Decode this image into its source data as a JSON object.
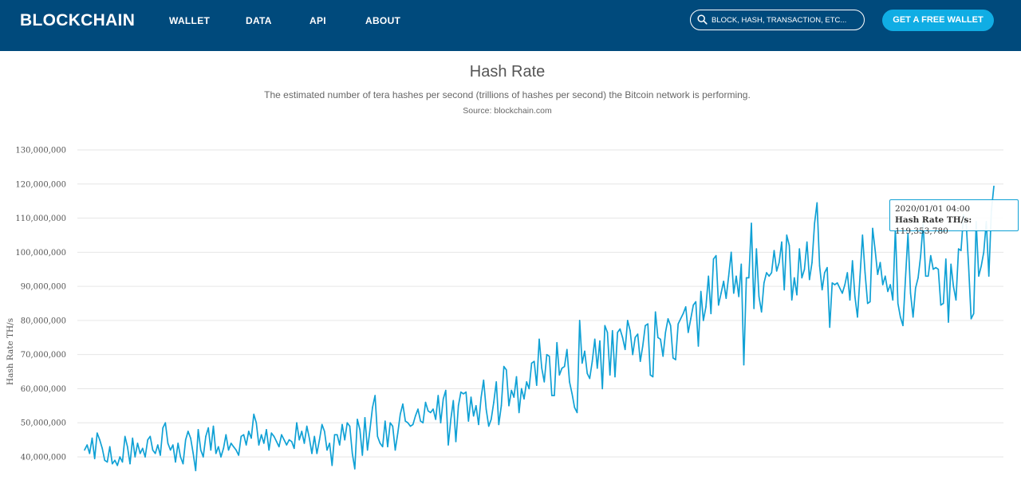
{
  "nav": {
    "brand": "BLOCKCHAIN",
    "items": [
      {
        "label": "WALLET"
      },
      {
        "label": "DATA"
      },
      {
        "label": "API"
      },
      {
        "label": "ABOUT"
      }
    ],
    "search_placeholder": "BLOCK, HASH, TRANSACTION, ETC...",
    "cta_label": "GET A FREE WALLET"
  },
  "page": {
    "title": "Hash Rate",
    "description": "The estimated number of tera hashes per second (trillions of hashes per second) the Bitcoin network is performing.",
    "source": "Source: blockchain.com"
  },
  "tooltip": {
    "date": "2020/01/01 04:00",
    "label": "Hash Rate TH/s:",
    "value": "119,353,780"
  },
  "colors": {
    "header_bg": "#004a7c",
    "cta": "#10ade4",
    "line": "#10a1d5",
    "grid": "#e6e6e6"
  },
  "chart_data": {
    "type": "line",
    "title": "Hash Rate",
    "ylabel": "Hash Rate TH/s",
    "ylim": [
      35000000,
      130000000
    ],
    "yticks": [
      40000000,
      50000000,
      60000000,
      70000000,
      80000000,
      90000000,
      100000000,
      110000000,
      120000000,
      130000000
    ],
    "ytick_labels": [
      "40,000,000",
      "50,000,000",
      "60,000,000",
      "70,000,000",
      "80,000,000",
      "90,000,000",
      "100,000,000",
      "110,000,000",
      "120,000,000",
      "130,000,000"
    ],
    "grid": true,
    "series": [
      {
        "values": [
          42.0,
          43.5,
          41.0,
          45.5,
          39.5,
          47.0,
          45.0,
          42.5,
          39.0,
          38.5,
          43.0,
          38.0,
          39.0,
          37.5,
          40.0,
          38.5,
          46.0,
          43.0,
          38.0,
          45.5,
          40.0,
          44.0,
          41.0,
          42.5,
          40.0,
          45.0,
          46.0,
          42.0,
          41.0,
          43.5,
          40.5,
          48.5,
          50.0,
          44.0,
          42.0,
          43.5,
          38.5,
          44.0,
          40.0,
          38.0,
          45.0,
          47.5,
          45.5,
          41.0,
          36.0,
          48.0,
          42.0,
          40.0,
          46.0,
          48.5,
          42.0,
          49.0,
          41.0,
          43.0,
          40.0,
          42.5,
          46.5,
          42.0,
          44.0,
          43.0,
          42.0,
          40.5,
          46.0,
          46.5,
          43.5,
          47.5,
          45.5,
          52.5,
          50.0,
          43.5,
          46.5,
          44.0,
          48.0,
          42.0,
          47.0,
          46.0,
          44.5,
          43.0,
          46.5,
          45.0,
          43.5,
          45.0,
          44.5,
          42.5,
          50.0,
          45.0,
          47.5,
          44.0,
          49.0,
          45.5,
          41.0,
          46.0,
          41.0,
          45.0,
          49.5,
          47.5,
          42.0,
          44.0,
          37.5,
          46.5,
          46.5,
          43.5,
          49.5,
          45.0,
          50.0,
          49.0,
          41.0,
          36.5,
          51.0,
          48.0,
          40.5,
          51.5,
          42.0,
          48.0,
          54.5,
          58.0,
          46.0,
          44.0,
          43.0,
          50.5,
          43.0,
          50.0,
          49.0,
          42.0,
          47.0,
          52.5,
          55.5,
          50.5,
          50.0,
          49.0,
          49.5,
          52.0,
          54.0,
          50.5,
          50.0,
          56.0,
          53.5,
          53.0,
          54.0,
          51.0,
          58.0,
          50.0,
          57.0,
          59.5,
          43.5,
          51.0,
          56.5,
          44.5,
          55.0,
          59.0,
          58.5,
          59.0,
          50.5,
          57.5,
          52.0,
          55.0,
          49.5,
          57.5,
          62.5,
          54.0,
          49.0,
          51.0,
          56.0,
          62.0,
          49.5,
          55.0,
          66.5,
          65.5,
          55.0,
          59.5,
          57.5,
          63.5,
          53.0,
          60.0,
          57.0,
          62.0,
          60.0,
          67.5,
          68.0,
          61.0,
          74.5,
          66.0,
          62.0,
          70.0,
          69.5,
          58.0,
          58.0,
          73.5,
          64.0,
          66.0,
          66.5,
          71.5,
          62.0,
          58.5,
          54.5,
          53.0,
          80.0,
          67.5,
          71.0,
          64.5,
          63.0,
          68.0,
          74.5,
          66.0,
          74.0,
          60.0,
          78.5,
          76.5,
          64.0,
          77.0,
          63.5,
          76.5,
          77.5,
          75.0,
          71.5,
          80.0,
          77.0,
          70.0,
          75.0,
          76.0,
          68.0,
          72.5,
          78.5,
          79.0,
          64.0,
          63.5,
          82.5,
          75.0,
          74.5,
          69.5,
          76.5,
          80.5,
          78.5,
          69.0,
          68.5,
          79.0,
          80.5,
          82.0,
          84.0,
          76.5,
          80.5,
          84.5,
          85.5,
          72.5,
          88.5,
          80.0,
          84.0,
          93.0,
          82.0,
          98.0,
          99.0,
          84.5,
          88.0,
          91.5,
          86.5,
          93.0,
          100.0,
          88.0,
          93.0,
          87.0,
          96.5,
          67.0,
          92.5,
          92.5,
          108.5,
          83.5,
          101.0,
          87.0,
          82.5,
          91.0,
          94.0,
          93.0,
          94.0,
          100.5,
          94.5,
          97.0,
          103.0,
          89.0,
          105.0,
          102.0,
          86.0,
          92.5,
          87.5,
          101.0,
          92.5,
          95.0,
          103.0,
          92.0,
          97.0,
          108.5,
          114.5,
          96.0,
          89.0,
          94.0,
          95.5,
          78.0,
          91.0,
          90.5,
          91.0,
          89.5,
          88.0,
          90.5,
          94.0,
          86.0,
          97.5,
          87.0,
          81.0,
          93.0,
          105.0,
          94.0,
          85.0,
          85.5,
          107.0,
          100.5,
          93.5,
          97.0,
          90.5,
          93.0,
          88.5,
          90.5,
          86.0,
          107.0,
          85.0,
          81.0,
          78.5,
          92.5,
          105.5,
          88.0,
          81.0,
          89.5,
          92.5,
          99.0,
          108.5,
          93.0,
          93.0,
          99.0,
          95.0,
          95.5,
          95.0,
          84.5,
          85.0,
          98.0,
          79.5,
          96.5,
          90.0,
          86.0,
          101.0,
          100.5,
          111.0,
          109.0,
          96.0,
          80.5,
          82.0,
          109.0,
          93.0,
          96.0,
          100.0,
          109.0,
          93.0,
          112.0,
          119.35
        ]
      }
    ]
  }
}
